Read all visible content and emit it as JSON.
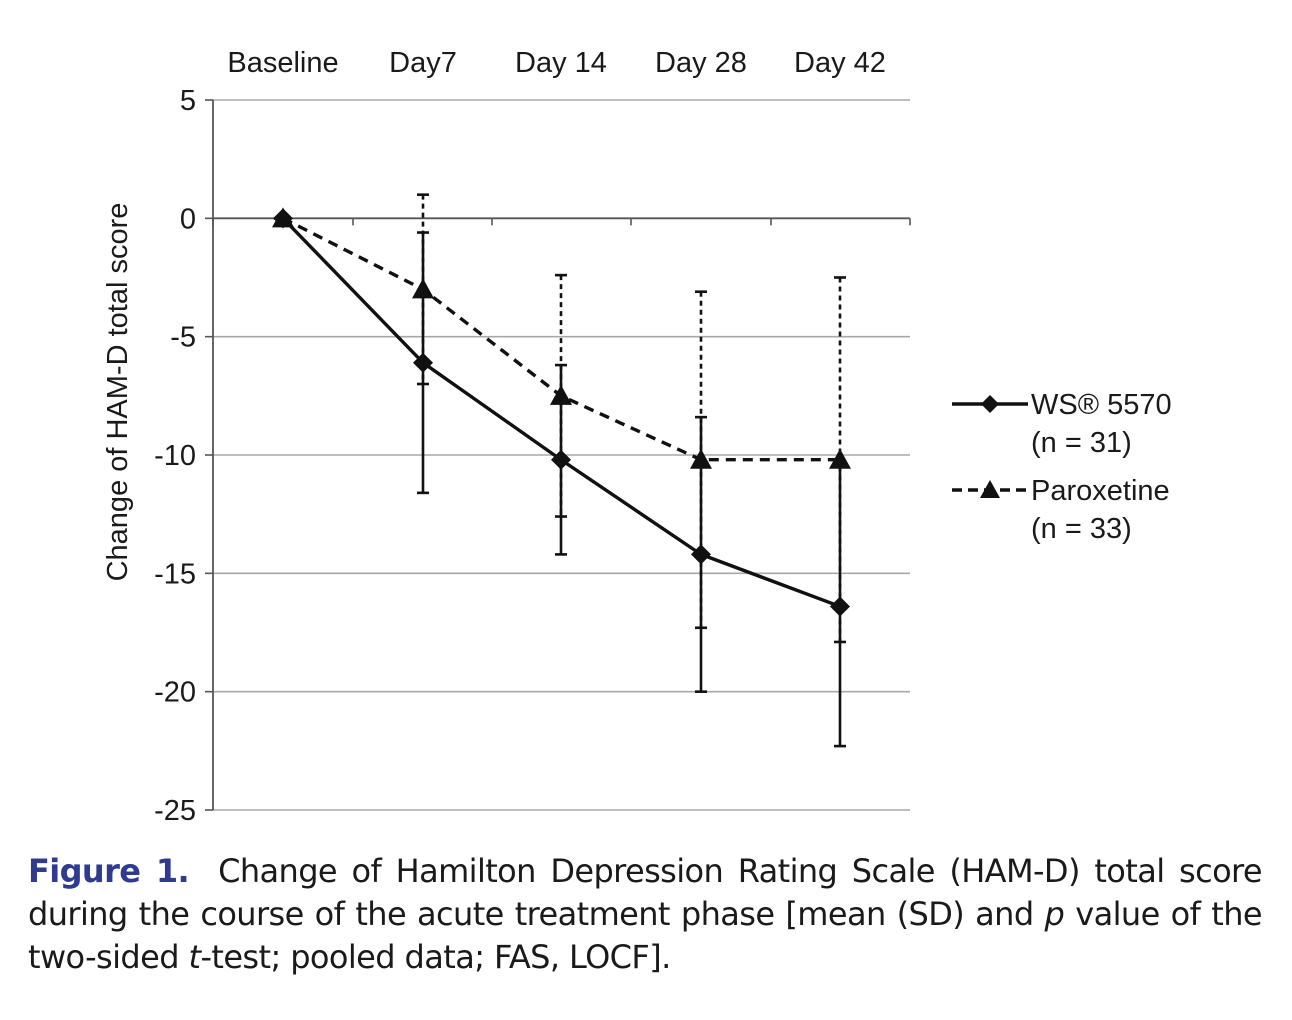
{
  "chart_data": {
    "type": "line",
    "categories": [
      "Baseline",
      "Day7",
      "Day 14",
      "Day 28",
      "Day 42"
    ],
    "ylabel": "Change of HAM-D total score",
    "ylim": [
      -25,
      5
    ],
    "yticks": [
      "5",
      "0",
      "-5",
      "-10",
      "-15",
      "-20",
      "-25"
    ],
    "grid": true,
    "legend_position": "right",
    "series": [
      {
        "name": "WS® 5570",
        "legend_line2": "(n = 31)",
        "marker": "diamond",
        "line_style": "solid",
        "values": [
          0,
          -6.1,
          -10.2,
          -14.2,
          -16.4
        ],
        "sd": [
          0,
          5.5,
          4.0,
          5.8,
          5.9
        ]
      },
      {
        "name": "Paroxetine",
        "legend_line2": "(n = 33)",
        "marker": "triangle",
        "line_style": "dashed",
        "values": [
          0,
          -3.0,
          -7.5,
          -10.2,
          -10.2
        ],
        "sd": [
          0,
          4.0,
          5.1,
          7.1,
          7.7
        ]
      }
    ]
  },
  "caption": {
    "label": "Figure 1.",
    "text_part1": "Change of Hamilton Depression Rating Scale (HAM-D) total score during the course of the acute treatment phase [mean (SD) and ",
    "italic_p": "p",
    "text_part2": " value of the two-sided ",
    "italic_t": "t",
    "text_part3": "-test; pooled data; FAS, LOCF]."
  }
}
